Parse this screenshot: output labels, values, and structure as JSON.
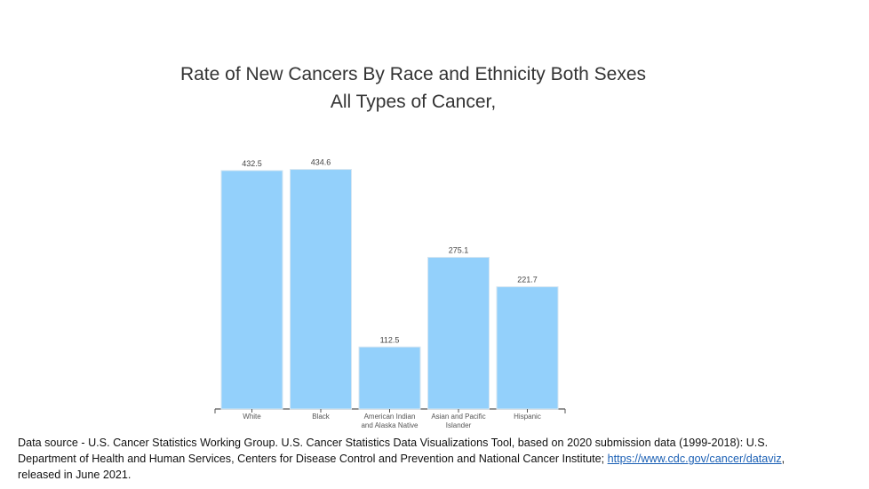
{
  "chart_data": {
    "type": "bar",
    "title": "Rate of New Cancers By Race and Ethnicity Both Sexes",
    "subtitle": "All Types of Cancer,",
    "categories": [
      [
        "White"
      ],
      [
        "Black"
      ],
      [
        "American Indian",
        "and Alaska Native"
      ],
      [
        "Asian and Pacific",
        "Islander"
      ],
      [
        "Hispanic"
      ]
    ],
    "values": [
      432.5,
      434.6,
      112.5,
      275.1,
      221.7
    ],
    "value_labels": [
      "432.5",
      "434.6",
      "112.5",
      "275.1",
      "221.7"
    ],
    "ylim": [
      0,
      450
    ],
    "bar_color": "#93d0fb",
    "grid": false,
    "xlabel": "",
    "ylabel": ""
  },
  "footnote": {
    "text_before": "Data source - U.S. Cancer Statistics Working Group. U.S. Cancer Statistics Data Visualizations Tool, based on 2020 submission data (1999-2018): U.S. Department of Health and Human Services, Centers for Disease Control and Prevention and National Cancer Institute; ",
    "link": "https://www.cdc.gov/cancer/dataviz",
    "text_after": ", released in June 2021."
  }
}
